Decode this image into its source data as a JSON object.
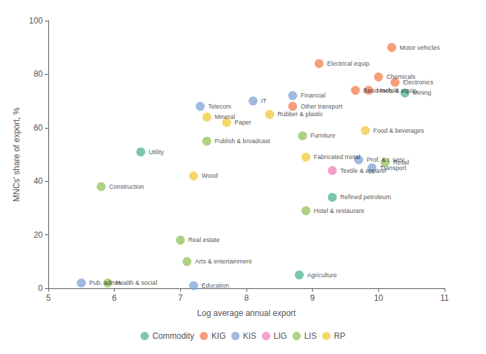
{
  "chart_data": {
    "type": "scatter",
    "xlabel": "Log average annual export",
    "ylabel": "MNCs' share of export, %",
    "xlim": [
      5,
      11
    ],
    "ylim": [
      0,
      100
    ],
    "xticks": [
      5,
      6,
      7,
      8,
      9,
      10,
      11
    ],
    "yticks": [
      0,
      20,
      40,
      60,
      80,
      100
    ],
    "grid": false,
    "legend": "bottom",
    "series": [
      {
        "name": "Commodity",
        "color": "#4CAF8F",
        "x": [
          10.4,
          6.4,
          9.3,
          8.8
        ],
        "values": [
          73,
          51,
          34,
          5
        ],
        "labels": [
          "Mining",
          "Utility",
          "Refined petroleum",
          "Agriculture"
        ]
      },
      {
        "name": "KIG",
        "color": "#F4784A",
        "x": [
          10.2,
          9.1,
          10.0,
          10.25,
          9.85,
          9.65,
          8.7
        ],
        "values": [
          90,
          84,
          79,
          77,
          74,
          74,
          68
        ],
        "labels": [
          "Motor vehicles",
          "Electrical equip.",
          "Chemicals",
          "Electronics",
          "Mach. & equip.",
          "Basic metals",
          "Other transport"
        ]
      },
      {
        "name": "KIS",
        "color": "#7B9FD4",
        "x": [
          8.7,
          8.1,
          7.3,
          9.7,
          9.9,
          5.5,
          7.2
        ],
        "values": [
          72,
          70,
          68,
          48,
          45,
          2,
          1
        ],
        "labels": [
          "Financial",
          "IT",
          "Telecom",
          "Prof. & r. serv.",
          "Transport",
          "Pub. admin.",
          "Education"
        ]
      },
      {
        "name": "LIG",
        "color": "#F47BBB",
        "x": [
          9.3
        ],
        "values": [
          44
        ],
        "labels": [
          "Textile & apparel"
        ]
      },
      {
        "name": "LIS",
        "color": "#8FBF55",
        "x": [
          8.85,
          7.4,
          10.1,
          5.8,
          8.9,
          7.0,
          7.1,
          5.9
        ],
        "values": [
          57,
          55,
          47,
          38,
          29,
          18,
          10,
          2
        ],
        "labels": [
          "Furniture",
          "Publish & broadcast",
          "Retail",
          "Construction",
          "Hotel & restaurant",
          "Real estate",
          "Arts & entertainment",
          "Health & social"
        ]
      },
      {
        "name": "RP",
        "color": "#F0C830",
        "x": [
          8.35,
          7.4,
          7.7,
          9.8,
          8.9,
          7.2
        ],
        "values": [
          65,
          64,
          62,
          59,
          49,
          42
        ],
        "labels": [
          "Rubber & plastic",
          "Mineral",
          "Paper",
          "Food & beverages",
          "Fabricated metal",
          "Wood"
        ]
      }
    ]
  }
}
